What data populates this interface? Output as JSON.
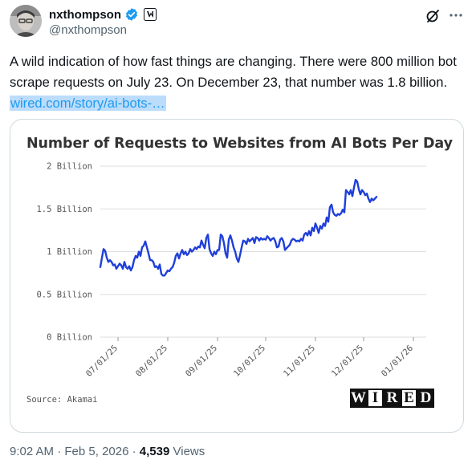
{
  "author": {
    "name": "nxthompson",
    "handle": "@nxthompson",
    "verified_color": "#1d9bf0"
  },
  "header_icons": [
    "grok-icon",
    "more-icon"
  ],
  "tweet": {
    "text": "A wild indication of how fast things are changing. There were 800 million bot scrape requests on July 23. On December 23, that number was 1.8 billion. ",
    "link_text": "wired.com/story/ai-bots-…",
    "link_color": "#1d9bf0"
  },
  "card": {
    "source": "Source: Akamai",
    "brand_letters": [
      "W",
      "I",
      "R",
      "E",
      "D"
    ]
  },
  "meta": {
    "time": "9:02 AM",
    "separator": " · ",
    "date": "Feb 5, 2026",
    "views_count": "4,539",
    "views_label": "Views"
  },
  "chart_data": {
    "type": "line",
    "title": "Number of Requests to Websites from AI Bots Per Day",
    "xlabel": "",
    "ylabel": "",
    "y_ticks": [
      {
        "value": 2,
        "label": "2 Billion"
      },
      {
        "value": 1.5,
        "label": "1.5 Billion"
      },
      {
        "value": 1,
        "label": "1 Billion"
      },
      {
        "value": 0.5,
        "label": "0.5 Billion"
      },
      {
        "value": 0,
        "label": "0 Billion"
      }
    ],
    "x_ticks": [
      {
        "day": 0,
        "label": "07/01/25"
      },
      {
        "day": 31,
        "label": "08/01/25"
      },
      {
        "day": 62,
        "label": "09/01/25"
      },
      {
        "day": 92,
        "label": "10/01/25"
      },
      {
        "day": 123,
        "label": "11/01/25"
      },
      {
        "day": 153,
        "label": "12/01/25"
      },
      {
        "day": 184,
        "label": "01/01/26"
      }
    ],
    "xlim": [
      -11,
      192
    ],
    "ylim": [
      0,
      2
    ],
    "grid": "horizontal",
    "line_color": "#1f3fd9",
    "series": [
      {
        "name": "",
        "values": [
          [
            -11,
            0.82
          ],
          [
            -10,
            0.93
          ],
          [
            -9,
            1.03
          ],
          [
            -8,
            1.01
          ],
          [
            -7,
            0.93
          ],
          [
            -6,
            0.88
          ],
          [
            -5,
            0.9
          ],
          [
            -4,
            0.88
          ],
          [
            -3,
            0.84
          ],
          [
            -2,
            0.85
          ],
          [
            -1,
            0.8
          ],
          [
            0,
            0.83
          ],
          [
            1,
            0.86
          ],
          [
            2,
            0.84
          ],
          [
            3,
            0.8
          ],
          [
            4,
            0.88
          ],
          [
            5,
            0.82
          ],
          [
            6,
            0.8
          ],
          [
            7,
            0.83
          ],
          [
            8,
            0.78
          ],
          [
            9,
            0.82
          ],
          [
            10,
            0.9
          ],
          [
            11,
            0.95
          ],
          [
            12,
            0.93
          ],
          [
            13,
            1.0
          ],
          [
            14,
            0.95
          ],
          [
            15,
            1.05
          ],
          [
            16,
            1.07
          ],
          [
            17,
            1.12
          ],
          [
            18,
            1.05
          ],
          [
            19,
            0.98
          ],
          [
            20,
            0.9
          ],
          [
            21,
            0.9
          ],
          [
            22,
            0.88
          ],
          [
            23,
            0.82
          ],
          [
            24,
            0.83
          ],
          [
            25,
            0.8
          ],
          [
            26,
            0.85
          ],
          [
            27,
            0.74
          ],
          [
            28,
            0.72
          ],
          [
            29,
            0.72
          ],
          [
            30,
            0.75
          ],
          [
            31,
            0.78
          ],
          [
            32,
            0.77
          ],
          [
            33,
            0.8
          ],
          [
            34,
            0.82
          ],
          [
            35,
            0.87
          ],
          [
            36,
            0.95
          ],
          [
            37,
            0.98
          ],
          [
            38,
            0.92
          ],
          [
            39,
            0.98
          ],
          [
            40,
            1.02
          ],
          [
            41,
            0.97
          ],
          [
            42,
            1.0
          ],
          [
            43,
            0.96
          ],
          [
            44,
            0.98
          ],
          [
            45,
            1.03
          ],
          [
            46,
            1.0
          ],
          [
            47,
            1.02
          ],
          [
            48,
            1.05
          ],
          [
            49,
            1.03
          ],
          [
            50,
            1.06
          ],
          [
            51,
            1.05
          ],
          [
            52,
            1.13
          ],
          [
            53,
            1.08
          ],
          [
            54,
            1.04
          ],
          [
            55,
            1.16
          ],
          [
            56,
            1.2
          ],
          [
            57,
            1.03
          ],
          [
            58,
            0.98
          ],
          [
            59,
            0.95
          ],
          [
            60,
            1.0
          ],
          [
            61,
            0.97
          ],
          [
            62,
            1.02
          ],
          [
            63,
            1.02
          ],
          [
            64,
            1.2
          ],
          [
            65,
            1.18
          ],
          [
            66,
            1.1
          ],
          [
            67,
            0.98
          ],
          [
            68,
            0.93
          ],
          [
            69,
            1.14
          ],
          [
            70,
            1.19
          ],
          [
            71,
            1.13
          ],
          [
            72,
            1.05
          ],
          [
            73,
            1.0
          ],
          [
            74,
            0.92
          ],
          [
            75,
            0.88
          ],
          [
            76,
            0.96
          ],
          [
            77,
            1.05
          ],
          [
            78,
            1.13
          ],
          [
            79,
            1.12
          ],
          [
            80,
            1.09
          ],
          [
            81,
            1.15
          ],
          [
            82,
            1.12
          ],
          [
            83,
            1.14
          ],
          [
            84,
            1.16
          ],
          [
            85,
            1.1
          ],
          [
            86,
            1.17
          ],
          [
            87,
            1.16
          ],
          [
            88,
            1.13
          ],
          [
            89,
            1.16
          ],
          [
            90,
            1.14
          ],
          [
            91,
            1.15
          ],
          [
            92,
            1.14
          ],
          [
            93,
            1.18
          ],
          [
            94,
            1.16
          ],
          [
            95,
            1.13
          ],
          [
            96,
            1.15
          ],
          [
            97,
            1.16
          ],
          [
            98,
            1.12
          ],
          [
            99,
            1.05
          ],
          [
            100,
            1.06
          ],
          [
            101,
            1.14
          ],
          [
            102,
            1.16
          ],
          [
            103,
            1.12
          ],
          [
            104,
            1.02
          ],
          [
            105,
            1.04
          ],
          [
            106,
            1.06
          ],
          [
            107,
            1.08
          ],
          [
            108,
            1.13
          ],
          [
            109,
            1.15
          ],
          [
            110,
            1.14
          ],
          [
            111,
            1.12
          ],
          [
            112,
            1.13
          ],
          [
            113,
            1.12
          ],
          [
            114,
            1.15
          ],
          [
            115,
            1.13
          ],
          [
            116,
            1.2
          ],
          [
            117,
            1.22
          ],
          [
            118,
            1.19
          ],
          [
            119,
            1.24
          ],
          [
            120,
            1.19
          ],
          [
            121,
            1.28
          ],
          [
            122,
            1.24
          ],
          [
            123,
            1.33
          ],
          [
            124,
            1.28
          ],
          [
            125,
            1.22
          ],
          [
            126,
            1.3
          ],
          [
            127,
            1.27
          ],
          [
            128,
            1.33
          ],
          [
            129,
            1.3
          ],
          [
            130,
            1.4
          ],
          [
            131,
            1.35
          ],
          [
            132,
            1.52
          ],
          [
            133,
            1.55
          ],
          [
            134,
            1.46
          ],
          [
            135,
            1.43
          ],
          [
            136,
            1.42
          ],
          [
            137,
            1.44
          ],
          [
            138,
            1.43
          ],
          [
            139,
            1.45
          ],
          [
            140,
            1.49
          ],
          [
            141,
            1.46
          ],
          [
            142,
            1.72
          ],
          [
            143,
            1.7
          ],
          [
            144,
            1.67
          ],
          [
            145,
            1.72
          ],
          [
            146,
            1.65
          ],
          [
            147,
            1.75
          ],
          [
            148,
            1.84
          ],
          [
            149,
            1.82
          ],
          [
            150,
            1.73
          ],
          [
            151,
            1.67
          ],
          [
            152,
            1.72
          ],
          [
            153,
            1.7
          ],
          [
            154,
            1.66
          ],
          [
            155,
            1.68
          ],
          [
            156,
            1.62
          ],
          [
            157,
            1.58
          ],
          [
            158,
            1.62
          ],
          [
            159,
            1.6
          ],
          [
            160,
            1.62
          ],
          [
            161,
            1.64
          ]
        ]
      }
    ]
  }
}
